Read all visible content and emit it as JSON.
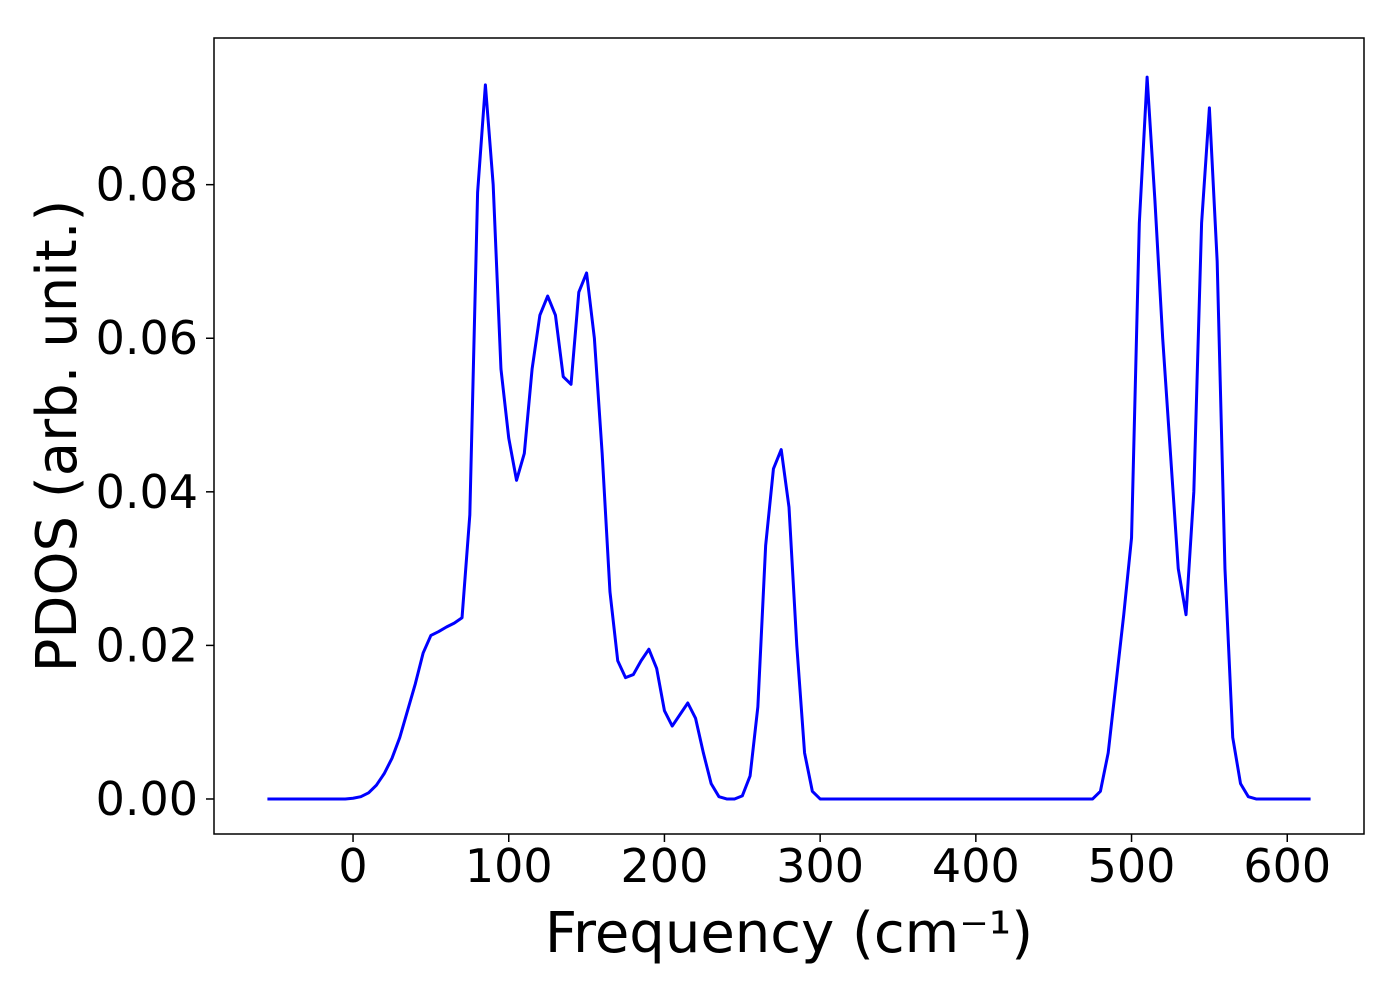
{
  "chart_data": {
    "type": "line",
    "xlabel": "Frequency (cm⁻¹)",
    "ylabel": "PDOS (arb. unit.)",
    "x": [
      -55,
      -50,
      -45,
      -40,
      -35,
      -30,
      -25,
      -20,
      -15,
      -10,
      -5,
      0,
      5,
      10,
      15,
      20,
      25,
      30,
      35,
      40,
      45,
      50,
      55,
      60,
      65,
      70,
      75,
      80,
      85,
      90,
      95,
      100,
      105,
      110,
      115,
      120,
      125,
      130,
      135,
      140,
      145,
      150,
      155,
      160,
      165,
      170,
      175,
      180,
      185,
      190,
      195,
      200,
      205,
      210,
      215,
      220,
      225,
      230,
      235,
      240,
      245,
      250,
      255,
      260,
      265,
      270,
      275,
      280,
      285,
      290,
      295,
      300,
      305,
      310,
      315,
      320,
      325,
      330,
      335,
      340,
      345,
      350,
      355,
      360,
      365,
      370,
      375,
      380,
      385,
      390,
      395,
      400,
      405,
      410,
      415,
      420,
      425,
      430,
      435,
      440,
      445,
      450,
      455,
      460,
      465,
      470,
      475,
      480,
      485,
      490,
      495,
      500,
      505,
      510,
      515,
      520,
      525,
      530,
      535,
      540,
      545,
      550,
      555,
      560,
      565,
      570,
      575,
      580,
      585,
      590,
      595,
      600,
      605,
      610,
      615
    ],
    "series": [
      {
        "name": "PDOS",
        "color": "#0000ff",
        "values": [
          0,
          0,
          0,
          0,
          0,
          0,
          0,
          0,
          0,
          0,
          0,
          0.0001,
          0.0003,
          0.0008,
          0.0018,
          0.0033,
          0.0053,
          0.008,
          0.0115,
          0.015,
          0.019,
          0.0213,
          0.0218,
          0.0224,
          0.0229,
          0.0236,
          0.037,
          0.079,
          0.093,
          0.08,
          0.056,
          0.047,
          0.0415,
          0.045,
          0.056,
          0.063,
          0.0655,
          0.063,
          0.055,
          0.054,
          0.066,
          0.0685,
          0.06,
          0.045,
          0.027,
          0.018,
          0.0158,
          0.0162,
          0.018,
          0.0195,
          0.017,
          0.0115,
          0.0095,
          0.011,
          0.0125,
          0.0105,
          0.006,
          0.002,
          0.0003,
          0,
          0,
          0.0004,
          0.003,
          0.012,
          0.033,
          0.043,
          0.0455,
          0.038,
          0.02,
          0.006,
          0.001,
          0,
          0,
          0,
          0,
          0,
          0,
          0,
          0,
          0,
          0,
          0,
          0,
          0,
          0,
          0,
          0,
          0,
          0,
          0,
          0,
          0,
          0,
          0,
          0,
          0,
          0,
          0,
          0,
          0,
          0,
          0,
          0,
          0,
          0,
          0,
          0,
          0.001,
          0.006,
          0.015,
          0.024,
          0.034,
          0.075,
          0.094,
          0.078,
          0.06,
          0.045,
          0.03,
          0.024,
          0.04,
          0.075,
          0.09,
          0.07,
          0.03,
          0.008,
          0.002,
          0.0003,
          0,
          0,
          0,
          0,
          0,
          0,
          0,
          0
        ]
      }
    ],
    "xlim": [
      -89.3,
      649.3
    ],
    "ylim": [
      -0.00456,
      0.0991
    ],
    "xticks": [
      0,
      100,
      200,
      300,
      400,
      500,
      600
    ],
    "yticks": [
      {
        "value": 0,
        "label": "0.00"
      },
      {
        "value": 0.02,
        "label": "0.02"
      },
      {
        "value": 0.04,
        "label": "0.04"
      },
      {
        "value": 0.06,
        "label": "0.06"
      },
      {
        "value": 0.08,
        "label": "0.08"
      }
    ],
    "grid": false
  }
}
